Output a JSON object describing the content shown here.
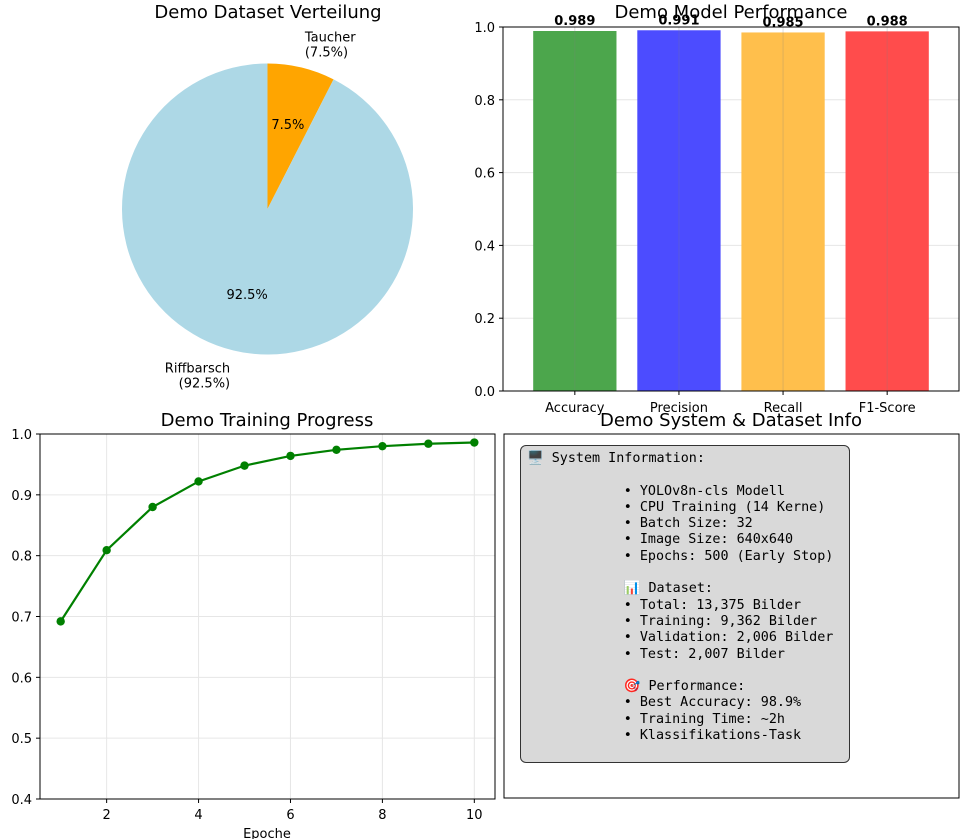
{
  "chart_data": [
    {
      "type": "pie",
      "title": "Demo Dataset Verteilung",
      "slices": [
        {
          "label": "Taucher\n(7.5%)",
          "value": 7.5,
          "pct_label": "7.5%",
          "color": "#ffa500"
        },
        {
          "label": "Riffbarsch\n(92.5%)",
          "value": 92.5,
          "pct_label": "92.5%",
          "color": "#add8e6"
        }
      ]
    },
    {
      "type": "bar",
      "title": "Demo Model Performance",
      "categories": [
        "Accuracy",
        "Precision",
        "Recall",
        "F1-Score"
      ],
      "values": [
        0.989,
        0.991,
        0.985,
        0.988
      ],
      "value_labels": [
        "0.989",
        "0.991",
        "0.985",
        "0.988"
      ],
      "colors": [
        "#4ca64c",
        "#4c4cff",
        "#ffbf4c",
        "#ff4c4c"
      ],
      "ylim": [
        0,
        1.0
      ],
      "yticks": [
        "0.0",
        "0.2",
        "0.4",
        "0.6",
        "0.8",
        "1.0"
      ],
      "grid": true
    },
    {
      "type": "line",
      "title": "Demo Training Progress",
      "xlabel": "Epoche",
      "ylabel": "",
      "x": [
        1,
        2,
        3,
        4,
        5,
        6,
        7,
        8,
        9,
        10
      ],
      "values": [
        0.692,
        0.809,
        0.88,
        0.922,
        0.948,
        0.964,
        0.974,
        0.98,
        0.984,
        0.986
      ],
      "color": "#008000",
      "xlim": [
        0.55,
        10.45
      ],
      "ylim": [
        0.4,
        1.0
      ],
      "xticks": [
        "2",
        "4",
        "6",
        "8",
        "10"
      ],
      "yticks": [
        "0.4",
        "0.5",
        "0.6",
        "0.7",
        "0.8",
        "0.9",
        "1.0"
      ],
      "grid": true
    }
  ],
  "info_panel": {
    "title": "Demo System & Dataset Info",
    "text": "🖥️ System Information:\n\n            • YOLOv8n-cls Modell\n            • CPU Training (14 Kerne)\n            • Batch Size: 32\n            • Image Size: 640x640\n            • Epochs: 500 (Early Stop)\n\n            📊 Dataset:\n            • Total: 13,375 Bilder\n            • Training: 9,362 Bilder\n            • Validation: 2,006 Bilder\n            • Test: 2,007 Bilder\n\n            🎯 Performance:\n            • Best Accuracy: 98.9%\n            • Training Time: ~2h\n            • Klassifikations-Task"
  }
}
